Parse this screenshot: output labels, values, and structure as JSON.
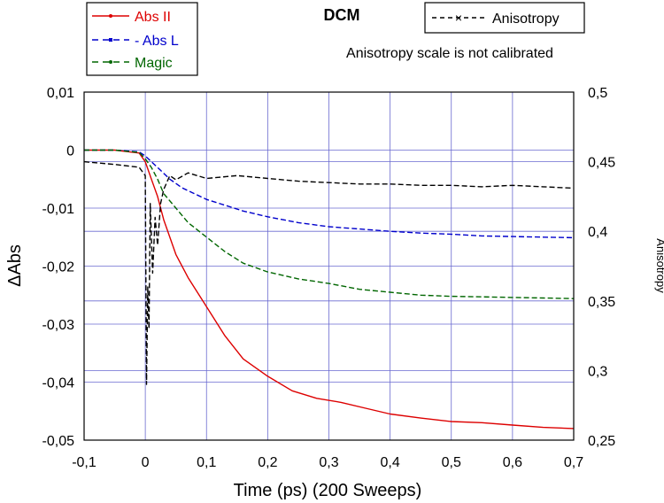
{
  "chart_data": {
    "type": "line",
    "title": "DCM",
    "annotation": "Anisotropy scale is not calibrated",
    "xlabel": "Time (ps) (200 Sweeps)",
    "ylabel": "ΔAbs",
    "y2label": "Anisotropy",
    "xlim": [
      -0.1,
      0.7
    ],
    "ylim": [
      -0.05,
      0.01
    ],
    "y2lim": [
      0.25,
      0.5
    ],
    "grid": true,
    "x_ticks": [
      "-0,1",
      "0",
      "0,1",
      "0,2",
      "0,3",
      "0,4",
      "0,5",
      "0,6",
      "0,7"
    ],
    "y_ticks": [
      "0,01",
      "0",
      "-0,01",
      "-0,02",
      "-0,03",
      "-0,04",
      "-0,05"
    ],
    "y2_ticks": [
      "0,5",
      "0,45",
      "0,4",
      "0,35",
      "0,3",
      "0,25"
    ],
    "legend_left": {
      "placement": "top-left",
      "entries": [
        "Abs II",
        "- Abs L",
        "Magic"
      ]
    },
    "legend_right": {
      "placement": "top-right",
      "entries": [
        "Anisotropy"
      ]
    },
    "series": [
      {
        "name": "Abs II",
        "axis": "left",
        "color": "#dd0000",
        "style": "solid",
        "x": [
          -0.1,
          -0.05,
          -0.01,
          0.0,
          0.01,
          0.02,
          0.03,
          0.05,
          0.07,
          0.1,
          0.13,
          0.16,
          0.2,
          0.24,
          0.28,
          0.32,
          0.36,
          0.4,
          0.45,
          0.5,
          0.55,
          0.6,
          0.65,
          0.7
        ],
        "y": [
          0.0,
          0.0,
          -0.0005,
          -0.002,
          -0.005,
          -0.008,
          -0.012,
          -0.018,
          -0.022,
          -0.027,
          -0.032,
          -0.036,
          -0.039,
          -0.0415,
          -0.0428,
          -0.0435,
          -0.0445,
          -0.0455,
          -0.0462,
          -0.0468,
          -0.047,
          -0.0474,
          -0.0478,
          -0.048
        ]
      },
      {
        "name": "Abs L",
        "axis": "left",
        "color": "#0000cc",
        "style": "dashed",
        "x": [
          -0.1,
          -0.05,
          -0.01,
          0.0,
          0.01,
          0.02,
          0.04,
          0.06,
          0.08,
          0.1,
          0.13,
          0.16,
          0.2,
          0.25,
          0.3,
          0.35,
          0.4,
          0.45,
          0.5,
          0.55,
          0.6,
          0.65,
          0.7
        ],
        "y": [
          0.0,
          0.0,
          -0.0003,
          -0.001,
          -0.002,
          -0.003,
          -0.005,
          -0.0065,
          -0.0075,
          -0.0085,
          -0.0095,
          -0.0105,
          -0.0115,
          -0.0125,
          -0.0132,
          -0.0136,
          -0.014,
          -0.0143,
          -0.0145,
          -0.0148,
          -0.0149,
          -0.015,
          -0.0151
        ]
      },
      {
        "name": "Magic",
        "axis": "left",
        "color": "#006600",
        "style": "dashed",
        "x": [
          -0.1,
          -0.05,
          -0.01,
          0.0,
          0.01,
          0.02,
          0.03,
          0.05,
          0.07,
          0.1,
          0.13,
          0.16,
          0.2,
          0.25,
          0.3,
          0.35,
          0.4,
          0.45,
          0.5,
          0.55,
          0.6,
          0.65,
          0.7
        ],
        "y": [
          0.0,
          0.0,
          -0.0004,
          -0.0015,
          -0.003,
          -0.005,
          -0.0075,
          -0.01,
          -0.0125,
          -0.015,
          -0.0175,
          -0.0195,
          -0.021,
          -0.0222,
          -0.023,
          -0.024,
          -0.0245,
          -0.025,
          -0.0252,
          -0.0253,
          -0.0254,
          -0.0255,
          -0.0256
        ]
      },
      {
        "name": "Anisotropy",
        "axis": "right",
        "color": "#000000",
        "style": "dashed",
        "x": [
          -0.1,
          -0.05,
          -0.01,
          0.0,
          0.002,
          0.004,
          0.006,
          0.008,
          0.012,
          0.016,
          0.02,
          0.025,
          0.03,
          0.04,
          0.05,
          0.07,
          0.1,
          0.15,
          0.2,
          0.25,
          0.3,
          0.35,
          0.4,
          0.45,
          0.5,
          0.55,
          0.6,
          0.65,
          0.7
        ],
        "y": [
          0.45,
          0.448,
          0.446,
          0.44,
          0.29,
          0.36,
          0.33,
          0.42,
          0.37,
          0.41,
          0.39,
          0.42,
          0.43,
          0.44,
          0.437,
          0.442,
          0.438,
          0.44,
          0.438,
          0.436,
          0.435,
          0.434,
          0.434,
          0.433,
          0.433,
          0.432,
          0.433,
          0.432,
          0.431
        ]
      }
    ]
  }
}
